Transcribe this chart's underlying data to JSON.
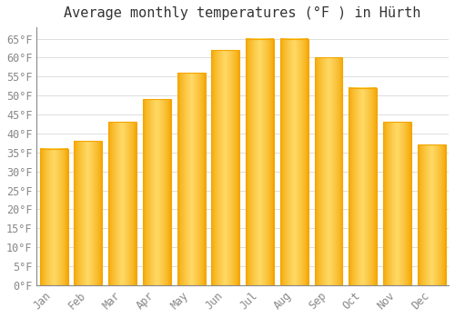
{
  "title": "Average monthly temperatures (°F ) in Hürth",
  "months": [
    "Jan",
    "Feb",
    "Mar",
    "Apr",
    "May",
    "Jun",
    "Jul",
    "Aug",
    "Sep",
    "Oct",
    "Nov",
    "Dec"
  ],
  "values": [
    36,
    38,
    43,
    49,
    56,
    62,
    65,
    65,
    60,
    52,
    43,
    37
  ],
  "bar_color_center": "#FFD966",
  "bar_color_edge": "#F4A500",
  "background_color": "#FFFFFF",
  "grid_color": "#DDDDDD",
  "ylim": [
    0,
    68
  ],
  "yticks": [
    0,
    5,
    10,
    15,
    20,
    25,
    30,
    35,
    40,
    45,
    50,
    55,
    60,
    65
  ],
  "title_fontsize": 11,
  "tick_fontsize": 8.5,
  "figsize": [
    5.0,
    3.5
  ],
  "dpi": 100
}
